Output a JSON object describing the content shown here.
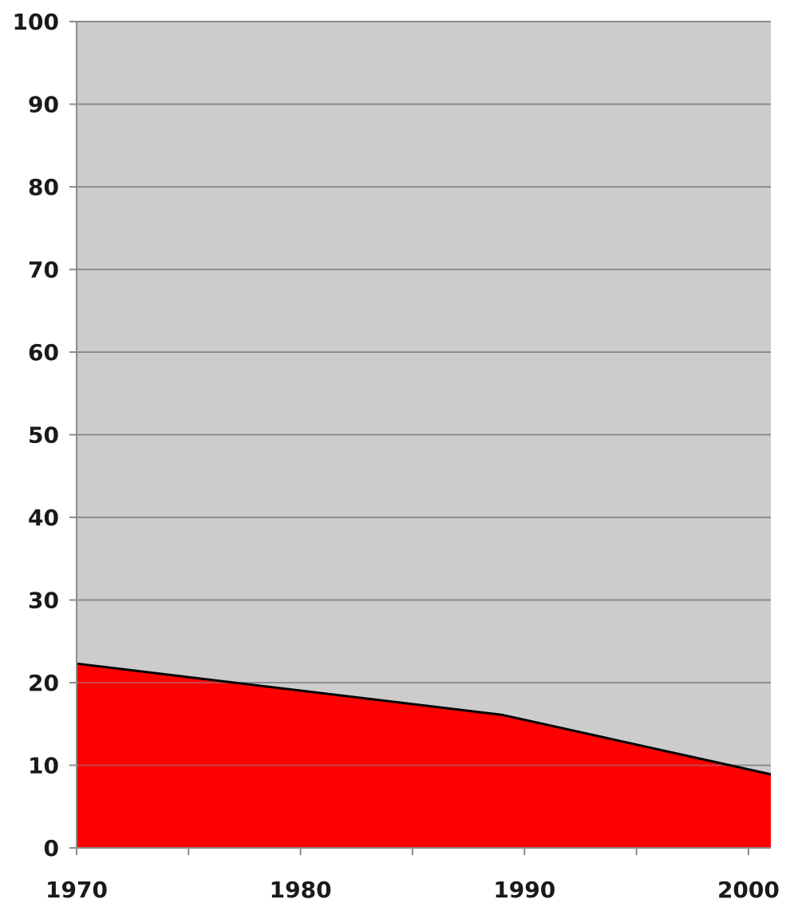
{
  "chart_data": {
    "type": "area",
    "title": "",
    "xlabel": "",
    "ylabel": "",
    "x": [
      1970,
      1989,
      2001
    ],
    "series": [
      {
        "values": [
          22.3,
          16.1,
          8.9
        ],
        "color": "#ff0000"
      }
    ],
    "xlim": [
      1970,
      2001
    ],
    "ylim": [
      0,
      100
    ],
    "x_ticks": [
      1970,
      1975,
      1980,
      1985,
      1990,
      1995,
      2000
    ],
    "x_tick_labels": [
      "1970",
      "1980",
      "1990",
      "2000"
    ],
    "y_ticks": [
      0,
      10,
      20,
      30,
      40,
      50,
      60,
      70,
      80,
      90,
      100
    ],
    "y_tick_labels": [
      "0",
      "10",
      "20",
      "30",
      "40",
      "50",
      "60",
      "70",
      "80",
      "90",
      "100"
    ],
    "grid": true,
    "legend": "none",
    "background_color": "#cccccc",
    "gridline_color": "#8c8c8c",
    "outline_color": "#000000"
  }
}
